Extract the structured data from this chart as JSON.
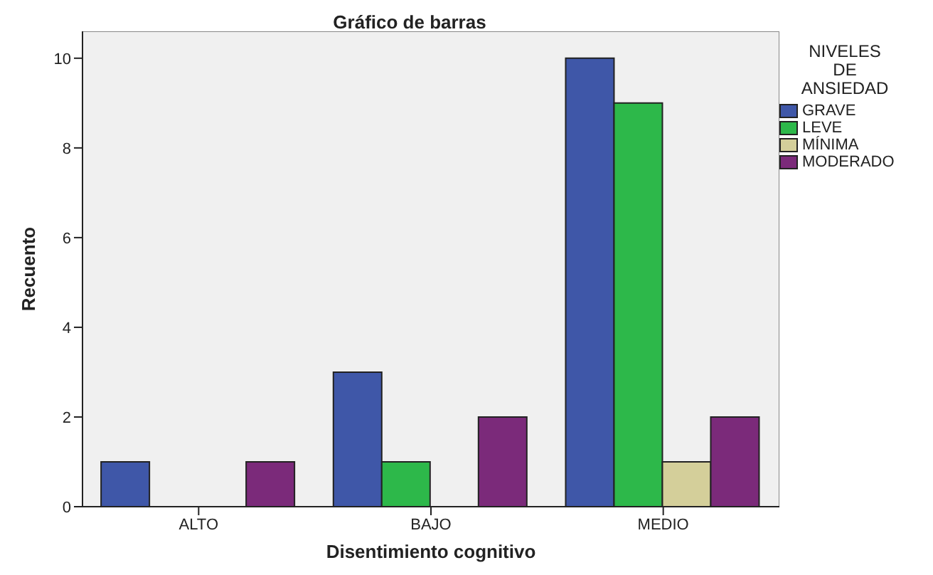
{
  "chart_data": {
    "type": "bar",
    "title": "Gráfico de barras",
    "xlabel": "Disentimiento cognitivo",
    "ylabel": "Recuento",
    "legend_title": "NIVELES DE ANSIEDAD",
    "categories": [
      "ALTO",
      "BAJO",
      "MEDIO"
    ],
    "series": [
      {
        "name": "GRAVE",
        "color": "#3f57a8",
        "values": [
          1,
          3,
          10
        ]
      },
      {
        "name": "LEVE",
        "color": "#2db84a",
        "values": [
          0,
          1,
          9
        ]
      },
      {
        "name": "MÍNIMA",
        "color": "#d4cf9a",
        "values": [
          0,
          0,
          1
        ]
      },
      {
        "name": "MODERADO",
        "color": "#7b2a7a",
        "values": [
          1,
          2,
          2
        ]
      }
    ],
    "ylim": [
      0,
      10.6
    ],
    "yticks": [
      0,
      2,
      4,
      6,
      8,
      10
    ],
    "legend": "right"
  }
}
